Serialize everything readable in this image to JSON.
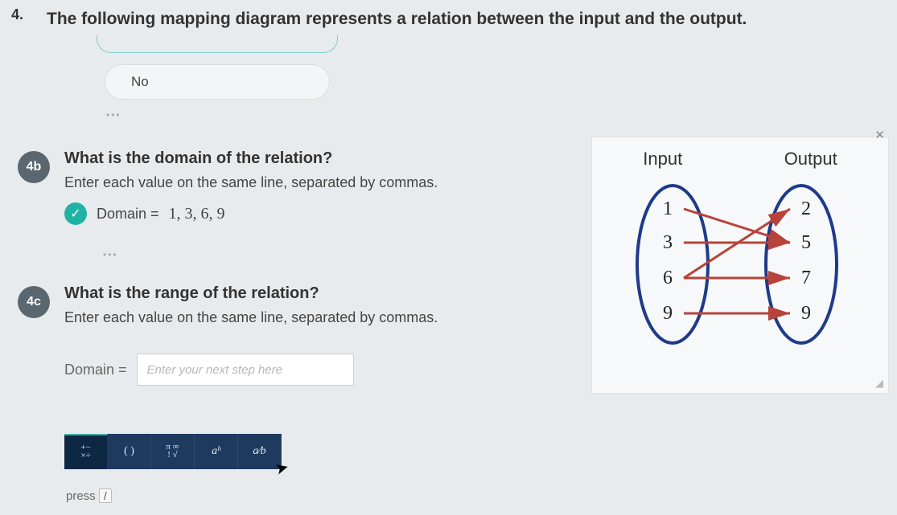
{
  "question": {
    "number": "4.",
    "title": "The following mapping diagram represents a relation between the input and the output."
  },
  "prev_answer": "No",
  "part_b": {
    "badge": "4b",
    "label": "What is the domain of the relation?",
    "hint": "Enter each value on the same line, separated by commas.",
    "answer_label": "Domain  =",
    "answer_value": "1,  3,  6,  9"
  },
  "part_c": {
    "badge": "4c",
    "label": "What is the range of the relation?",
    "hint": "Enter each value on the same line, separated by commas.",
    "input_label": "Domain  =",
    "placeholder": "Enter your next step here"
  },
  "toolbar": {
    "ops": "+−\n×÷",
    "parens": "( )",
    "sym": "π ∞\n! √",
    "exp": "aᵇ",
    "frac": "a⁄b"
  },
  "press": {
    "label": "press",
    "key": "/"
  },
  "diagram": {
    "input_label": "Input",
    "output_label": "Output",
    "inputs": [
      "1",
      "3",
      "6",
      "9"
    ],
    "outputs": [
      "2",
      "5",
      "7",
      "9"
    ],
    "input_y": [
      90,
      132,
      176,
      220
    ],
    "output_y": [
      90,
      132,
      176,
      220
    ],
    "edges": [
      {
        "from": 0,
        "to": 1
      },
      {
        "from": 1,
        "to": 1
      },
      {
        "from": 2,
        "to": 0
      },
      {
        "from": 2,
        "to": 2
      },
      {
        "from": 3,
        "to": 3
      }
    ],
    "oval_color": "#1e3a8a",
    "arrow_color": "#b8433a",
    "bg": "#f6f8f9"
  }
}
